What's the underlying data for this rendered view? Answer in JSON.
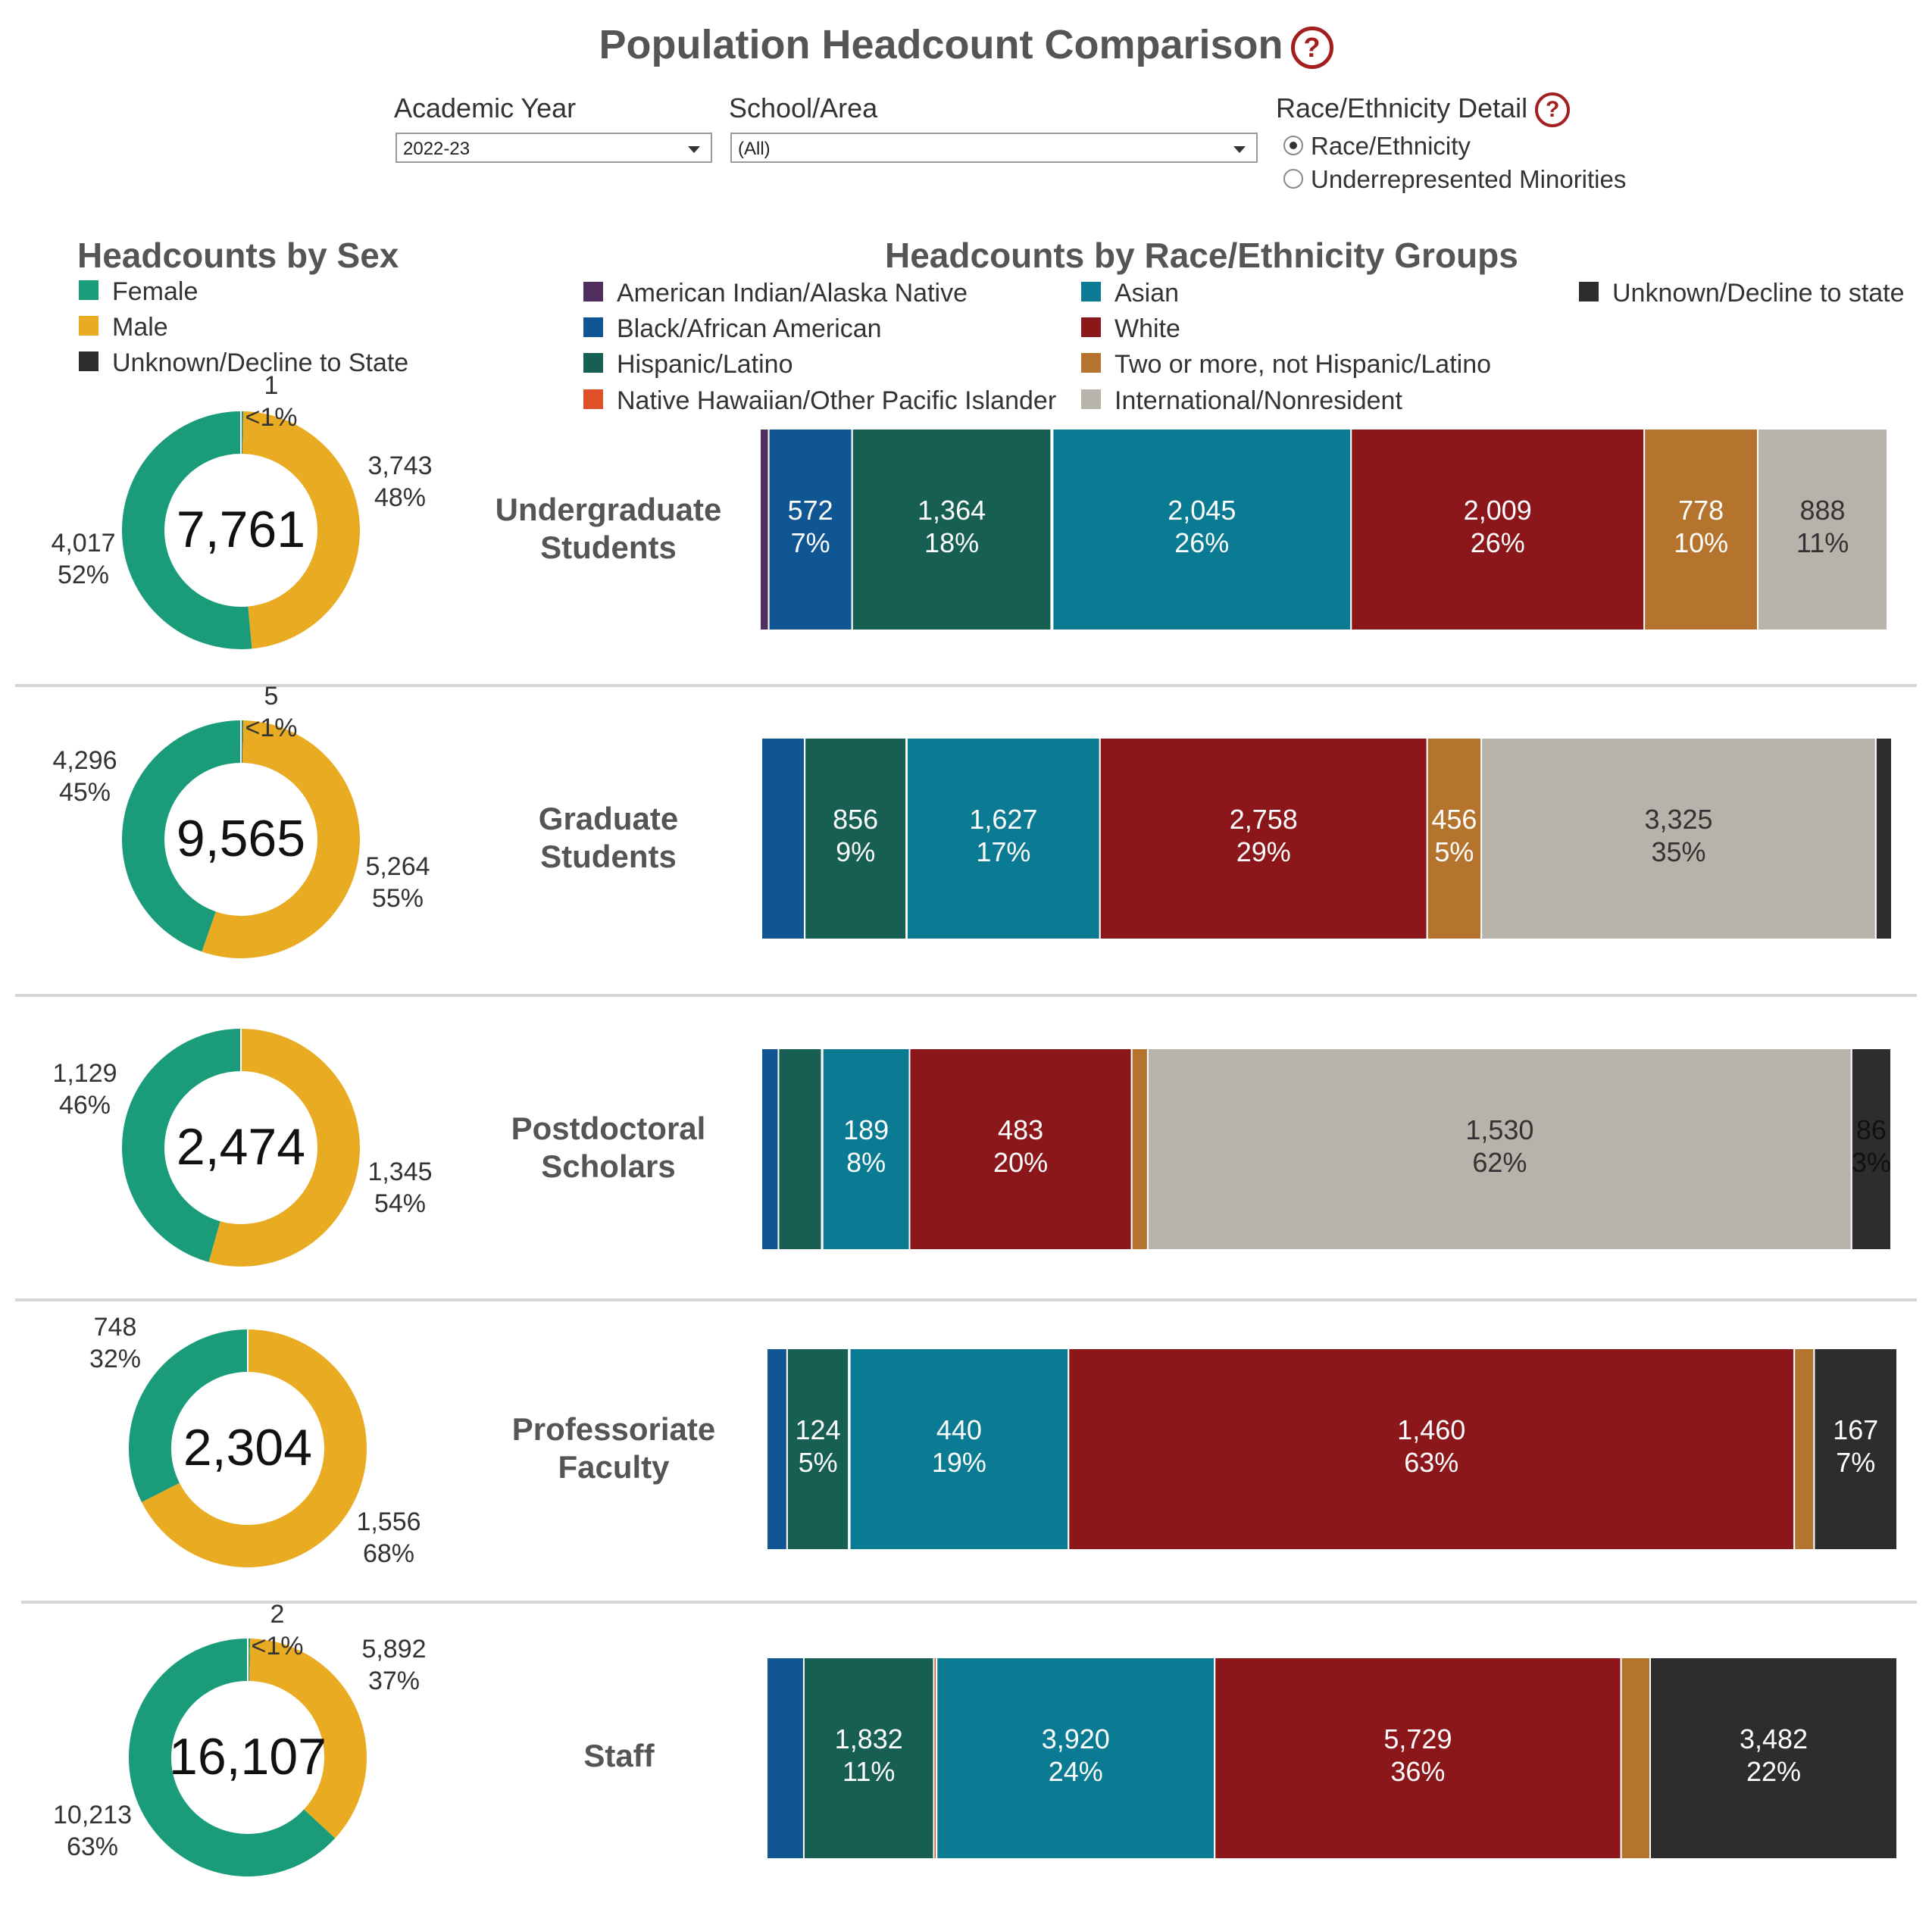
{
  "header": {
    "title": "Population Headcount Comparison",
    "help_glyph": "?"
  },
  "filters": {
    "academic_year": {
      "label": "Academic Year",
      "value": "2022-23"
    },
    "school_area": {
      "label": "School/Area",
      "value": "(All)"
    },
    "race_detail": {
      "label": "Race/Ethnicity Detail",
      "options": [
        "Race/Ethnicity",
        "Underrepresented Minorities"
      ],
      "selected": "Race/Ethnicity"
    }
  },
  "sex_section": {
    "title": "Headcounts by Sex",
    "legend": [
      {
        "label": "Female",
        "color": "#1a9c7a"
      },
      {
        "label": "Male",
        "color": "#e8ab22"
      },
      {
        "label": "Unknown/Decline to State",
        "color": "#2d2d2d"
      }
    ]
  },
  "race_section": {
    "title": "Headcounts by Race/Ethnicity Groups",
    "legend": [
      {
        "label": "American Indian/Alaska Native",
        "color": "#4f2d5e"
      },
      {
        "label": "Black/African American",
        "color": "#0f5693"
      },
      {
        "label": "Hispanic/Latino",
        "color": "#165f52"
      },
      {
        "label": "Native Hawaiian/Other Pacific Islander",
        "color": "#e05028"
      },
      {
        "label": "Asian",
        "color": "#0a7b92"
      },
      {
        "label": "White",
        "color": "#8c171b"
      },
      {
        "label": "Two or more, not Hispanic/Latino",
        "color": "#b5742d"
      },
      {
        "label": "International/Nonresident",
        "color": "#b7b2aa"
      },
      {
        "label": "Unknown/Decline to state",
        "color": "#2d2d2d"
      }
    ]
  },
  "chart_data": [
    {
      "type": "pie",
      "group": "Undergraduate Students",
      "total": "7,761",
      "slices": [
        {
          "name": "Female",
          "value": 4017,
          "label": "4,017",
          "pct": "52%"
        },
        {
          "name": "Male",
          "value": 3743,
          "label": "3,743",
          "pct": "48%"
        },
        {
          "name": "Unknown/Decline to State",
          "value": 1,
          "label": "1",
          "pct": "<1%"
        }
      ]
    },
    {
      "type": "pie",
      "group": "Graduate Students",
      "total": "9,565",
      "slices": [
        {
          "name": "Female",
          "value": 4296,
          "label": "4,296",
          "pct": "45%"
        },
        {
          "name": "Male",
          "value": 5264,
          "label": "5,264",
          "pct": "55%"
        },
        {
          "name": "Unknown/Decline to State",
          "value": 5,
          "label": "5",
          "pct": "<1%"
        }
      ]
    },
    {
      "type": "pie",
      "group": "Postdoctoral Scholars",
      "total": "2,474",
      "slices": [
        {
          "name": "Female",
          "value": 1129,
          "label": "1,129",
          "pct": "46%"
        },
        {
          "name": "Male",
          "value": 1345,
          "label": "1,345",
          "pct": "54%"
        },
        {
          "name": "Unknown/Decline to State",
          "value": 0,
          "label": "",
          "pct": ""
        }
      ]
    },
    {
      "type": "pie",
      "group": "Professoriate Faculty",
      "total": "2,304",
      "slices": [
        {
          "name": "Female",
          "value": 748,
          "label": "748",
          "pct": "32%"
        },
        {
          "name": "Male",
          "value": 1556,
          "label": "1,556",
          "pct": "68%"
        },
        {
          "name": "Unknown/Decline to State",
          "value": 0,
          "label": "",
          "pct": ""
        }
      ]
    },
    {
      "type": "pie",
      "group": "Staff",
      "total": "16,107",
      "slices": [
        {
          "name": "Female",
          "value": 10213,
          "label": "10,213",
          "pct": "63%"
        },
        {
          "name": "Male",
          "value": 5892,
          "label": "5,892",
          "pct": "37%"
        },
        {
          "name": "Unknown/Decline to State",
          "value": 2,
          "label": "2",
          "pct": "<1%"
        }
      ]
    },
    {
      "type": "bar",
      "orientation": "horizontal-stacked-100",
      "groups": [
        "Undergraduate Students",
        "Graduate Students",
        "Postdoctoral Scholars",
        "Professoriate Faculty",
        "Staff"
      ],
      "series": [
        {
          "name": "American Indian/Alaska Native",
          "values": [
            60,
            0,
            0,
            0,
            0
          ],
          "labels": [
            "",
            "",
            "",
            "",
            ""
          ],
          "pcts": [
            "",
            "",
            "",
            "",
            ""
          ]
        },
        {
          "name": "Black/African American",
          "values": [
            572,
            365,
            37,
            41,
            523
          ],
          "labels": [
            "572",
            "",
            "",
            "",
            ""
          ],
          "pcts": [
            "7%",
            "",
            "",
            "",
            ""
          ]
        },
        {
          "name": "Hispanic/Latino",
          "values": [
            1364,
            856,
            94,
            124,
            1832
          ],
          "labels": [
            "1,364",
            "856",
            "",
            "124",
            "1,832"
          ],
          "pcts": [
            "18%",
            "9%",
            "",
            "5%",
            "11%"
          ]
        },
        {
          "name": "Native Hawaiian/Other Pacific Islander",
          "values": [
            10,
            5,
            2,
            2,
            40
          ],
          "labels": [
            "",
            "",
            "",
            "",
            ""
          ],
          "pcts": [
            "",
            "",
            "",
            "",
            ""
          ]
        },
        {
          "name": "Asian",
          "values": [
            2045,
            1627,
            189,
            440,
            3920
          ],
          "labels": [
            "2,045",
            "1,627",
            "189",
            "440",
            "3,920"
          ],
          "pcts": [
            "26%",
            "17%",
            "8%",
            "19%",
            "24%"
          ]
        },
        {
          "name": "White",
          "values": [
            2009,
            2758,
            483,
            1460,
            5729
          ],
          "labels": [
            "2,009",
            "2,758",
            "483",
            "1,460",
            "5,729"
          ],
          "pcts": [
            "26%",
            "29%",
            "20%",
            "63%",
            "36%"
          ]
        },
        {
          "name": "Two or more, not Hispanic/Latino",
          "values": [
            778,
            456,
            35,
            40,
            410
          ],
          "labels": [
            "778",
            "456",
            "",
            "",
            ""
          ],
          "pcts": [
            "10%",
            "5%",
            "",
            "",
            ""
          ]
        },
        {
          "name": "International/Nonresident",
          "values": [
            888,
            3325,
            1530,
            0,
            0
          ],
          "labels": [
            "888",
            "3,325",
            "1,530",
            "",
            ""
          ],
          "pcts": [
            "11%",
            "35%",
            "62%",
            "",
            ""
          ]
        },
        {
          "name": "Unknown/Decline to state",
          "values": [
            10,
            135,
            86,
            167,
            3482
          ],
          "labels": [
            "",
            "",
            "86",
            "167",
            "3,482"
          ],
          "pcts": [
            "",
            "",
            "3%",
            "7%",
            "22%"
          ]
        }
      ]
    }
  ]
}
